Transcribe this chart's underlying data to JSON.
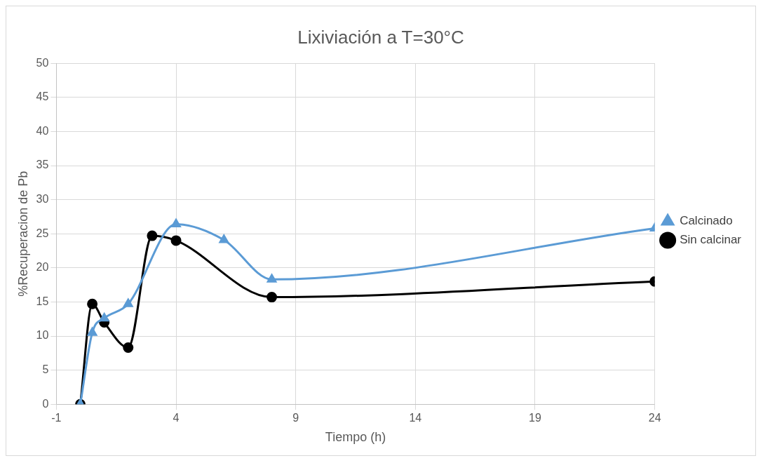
{
  "chart_data": {
    "type": "line",
    "title": "Lixiviación a T=30°C",
    "xlabel": "Tiempo (h)",
    "ylabel": "%Recuperacion de Pb",
    "xlim": [
      -1,
      24
    ],
    "xticks": [
      -1,
      4,
      9,
      14,
      19,
      24
    ],
    "ylim": [
      0,
      50
    ],
    "yticks": [
      0,
      5,
      10,
      15,
      20,
      25,
      30,
      35,
      40,
      45,
      50
    ],
    "grid": true,
    "legend": "right",
    "series": [
      {
        "name": "Calcinado",
        "color": "#5b9bd5",
        "marker": "triangle",
        "x": [
          0,
          0.5,
          1,
          2,
          4,
          6,
          8,
          24
        ],
        "values": [
          0,
          10.5,
          12.6,
          14.7,
          26.4,
          24.1,
          18.3,
          25.8
        ]
      },
      {
        "name": "Sin calcinar",
        "color": "#000000",
        "marker": "circle",
        "x": [
          0,
          0.5,
          1,
          2,
          3,
          4,
          8,
          24
        ],
        "values": [
          0,
          14.7,
          12.0,
          8.3,
          24.7,
          24.0,
          15.7,
          18.0
        ]
      }
    ]
  }
}
